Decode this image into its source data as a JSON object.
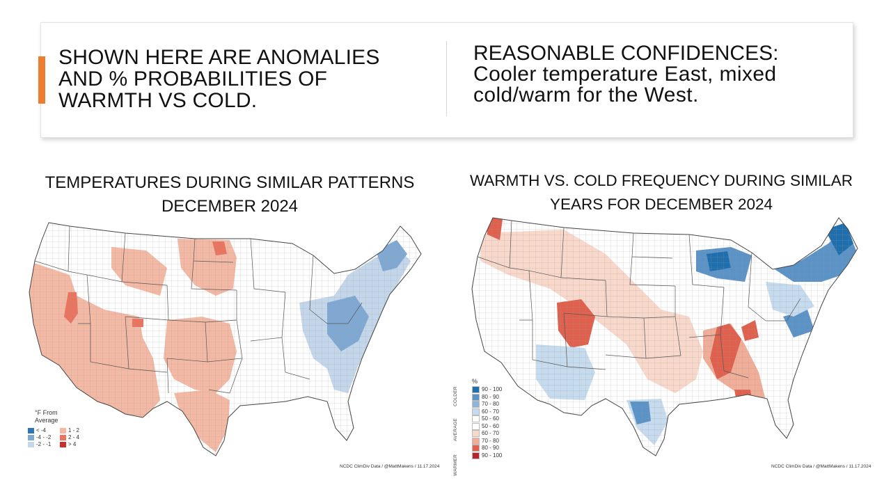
{
  "header": {
    "left_heading": "SHOWN HERE ARE ANOMALIES AND % PROBABILITIES OF WARMTH VS COLD.",
    "right_heading": "REASONABLE CONFIDENCES:",
    "right_body": "Cooler temperature East, mixed cold/warm for the West.",
    "accent_color": "#ED7D31"
  },
  "map1": {
    "title_line1": "TEMPERATURES DURING SIMILAR PATTERNS",
    "title_line2": "DECEMBER 2024",
    "legend_title_line1": "°F From",
    "legend_title_line2": "Average",
    "legend_items": [
      {
        "label": "< -4",
        "color": "#2e75b6"
      },
      {
        "label": "1 - 2",
        "color": "#f4b9a4"
      },
      {
        "label": "-4 - -2",
        "color": "#7fa9d3"
      },
      {
        "label": "2 - 4",
        "color": "#e9745f"
      },
      {
        "label": "-2 - -1",
        "color": "#c3d6ea"
      },
      {
        "label": "> 4",
        "color": "#c9302c"
      }
    ],
    "credit": "NCDC ClimDiv Data / @MattMakens / 11.17.2024"
  },
  "map2": {
    "title_line1": "WARMTH VS. COLD FREQUENCY DURING SIMILAR",
    "title_line2": "YEARS FOR DECEMBER 2024",
    "legend_unit": "%",
    "legend_items": [
      {
        "label": "90 - 100",
        "color": "#1f6fae"
      },
      {
        "label": "80 - 90",
        "color": "#5b93c7"
      },
      {
        "label": "70 - 80",
        "color": "#8db5da"
      },
      {
        "label": "60 - 70",
        "color": "#c6dbee"
      },
      {
        "label": "50 - 60",
        "color": "#ffffff"
      },
      {
        "label": "50 - 60",
        "color": "#ffffff"
      },
      {
        "label": "60 - 70",
        "color": "#f8d8cb"
      },
      {
        "label": "70 - 80",
        "color": "#f0ad98"
      },
      {
        "label": "80 - 90",
        "color": "#e0604e"
      },
      {
        "label": "90 - 100",
        "color": "#b8242b"
      }
    ],
    "side_labels": {
      "colder": "COLDER",
      "average": "AVERAGE",
      "warmer": "WARMER"
    },
    "credit": "NCDC ClimDiv Data / @MattMakens / 11.17.2024"
  }
}
